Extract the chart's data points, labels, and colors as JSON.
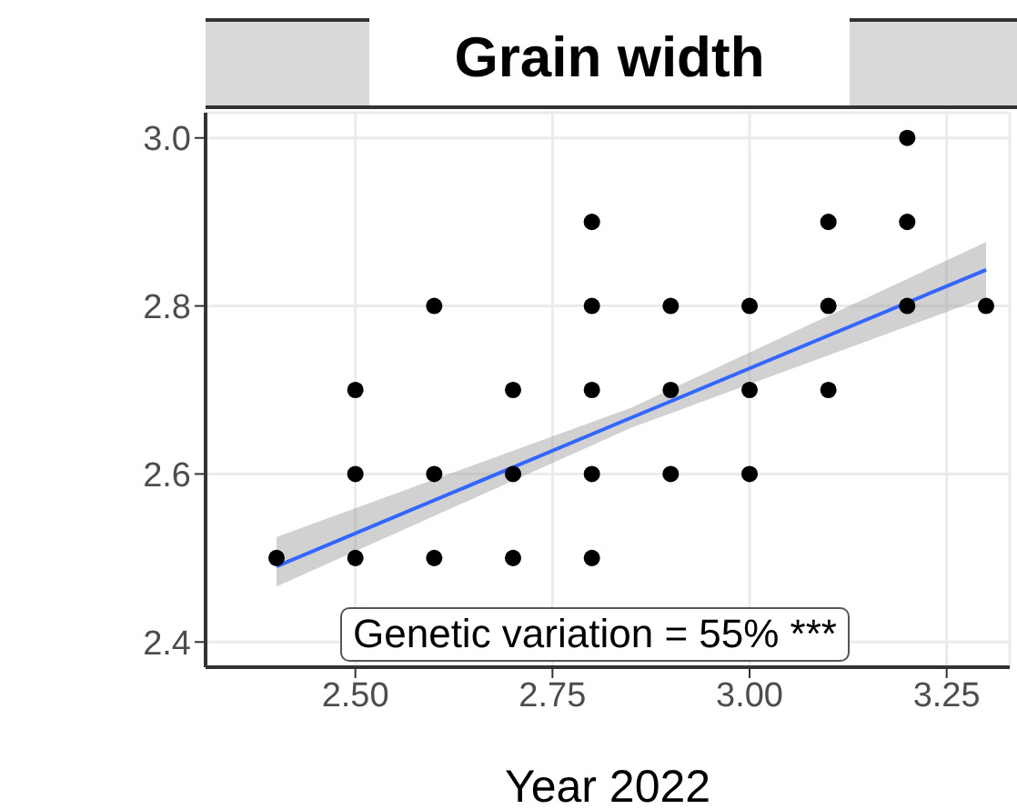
{
  "chart_data": {
    "type": "scatter",
    "title": "Grain width",
    "xlabel": "Year 2022",
    "annotations": [
      "Genetic variation = 55% ***"
    ],
    "xlim": [
      2.31,
      3.33
    ],
    "xticks": [
      {
        "value": 2.5,
        "label": "2.50"
      },
      {
        "value": 2.75,
        "label": "2.75"
      },
      {
        "value": 3.0,
        "label": "3.00"
      },
      {
        "value": 3.25,
        "label": "3.25"
      }
    ],
    "ylim": [
      2.37,
      3.03
    ],
    "yticks": [
      {
        "value": 2.4,
        "label": "2.4"
      },
      {
        "value": 2.6,
        "label": "2.6"
      },
      {
        "value": 2.8,
        "label": "2.8"
      },
      {
        "value": 3.0,
        "label": "3.0"
      }
    ],
    "grid": true,
    "series": [
      {
        "marker": "circle",
        "color": "#000000",
        "x": [
          2.4,
          2.5,
          2.5,
          2.5,
          2.6,
          2.6,
          2.6,
          2.7,
          2.7,
          2.7,
          2.8,
          2.8,
          2.8,
          2.8,
          2.8,
          2.9,
          2.9,
          2.9,
          3.0,
          3.0,
          3.0,
          3.1,
          3.1,
          3.1,
          3.2,
          3.2,
          3.2,
          3.3
        ],
        "values": [
          2.5,
          2.7,
          2.6,
          2.5,
          2.8,
          2.6,
          2.5,
          2.7,
          2.6,
          2.5,
          2.9,
          2.8,
          2.7,
          2.6,
          2.5,
          2.8,
          2.7,
          2.6,
          2.8,
          2.7,
          2.6,
          2.9,
          2.8,
          2.7,
          3.0,
          2.9,
          2.8,
          2.8
        ]
      },
      {
        "type": "line",
        "marker": "none",
        "color": "#3366ff",
        "x": [
          2.4,
          2.85,
          3.3
        ],
        "values": [
          2.49,
          2.667,
          2.843
        ],
        "lower": [
          2.466,
          2.655,
          2.81
        ],
        "upper": [
          2.525,
          2.679,
          2.876
        ]
      }
    ]
  }
}
